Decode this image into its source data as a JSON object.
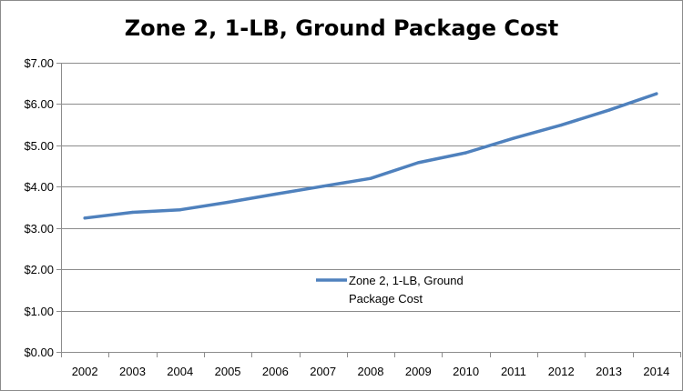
{
  "chart_data": {
    "type": "line",
    "title": "Zone 2, 1-LB, Ground Package Cost",
    "xlabel": "",
    "ylabel": "",
    "categories": [
      "2002",
      "2003",
      "2004",
      "2005",
      "2006",
      "2007",
      "2008",
      "2009",
      "2010",
      "2011",
      "2012",
      "2013",
      "2014"
    ],
    "series": [
      {
        "name": "Zone 2, 1-LB, Ground Package Cost",
        "legend_lines": [
          "Zone 2, 1-LB, Ground",
          "Package Cost"
        ],
        "color": "#4f81bd",
        "values": [
          3.24,
          3.38,
          3.44,
          3.62,
          3.82,
          4.01,
          4.2,
          4.58,
          4.82,
          5.17,
          5.49,
          5.85,
          6.25
        ]
      }
    ],
    "ylim": [
      0,
      7
    ],
    "yticks": [
      0,
      1,
      2,
      3,
      4,
      5,
      6,
      7
    ],
    "ytick_labels": [
      "$0.00",
      "$1.00",
      "$2.00",
      "$3.00",
      "$4.00",
      "$5.00",
      "$6.00",
      "$7.00"
    ],
    "grid": true,
    "legend_position": "center"
  }
}
